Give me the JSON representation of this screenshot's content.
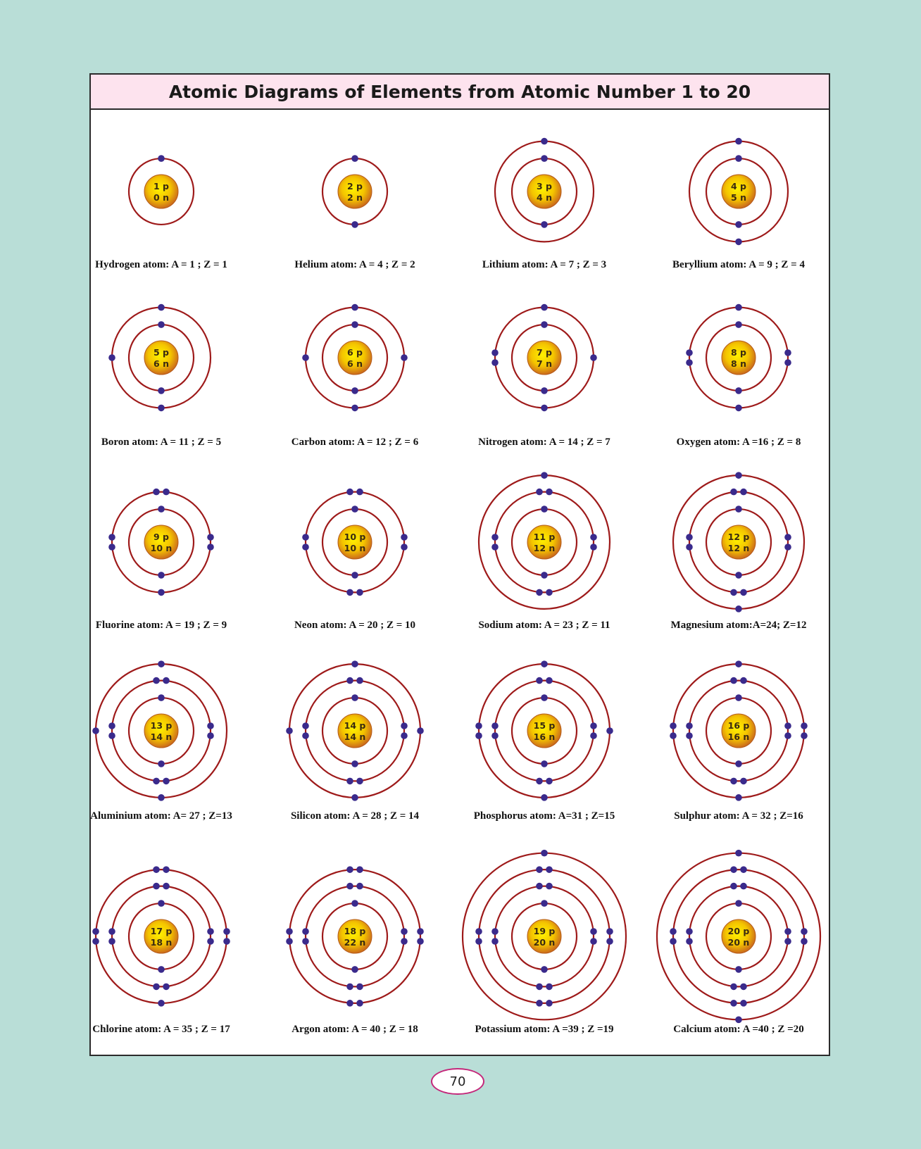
{
  "title": "Atomic Diagrams of Elements from Atomic Number 1 to 20",
  "page_number": "70",
  "colors": {
    "background": "#b9ded7",
    "panel": "#ffffff",
    "title_bar": "#fde3ee",
    "orbit": "#9e1a1a",
    "electron": "#3a2a8c",
    "nucleus_center": "#fff200",
    "nucleus_edge": "#c8641e",
    "page_oval_border": "#c4277a"
  },
  "atoms": [
    {
      "element": "Hydrogen",
      "nucleus": [
        "1 p",
        "0 n"
      ],
      "shells": [
        1
      ],
      "caption": "Hydrogen atom: A = 1 ; Z = 1"
    },
    {
      "element": "Helium",
      "nucleus": [
        "2 p",
        "2 n"
      ],
      "shells": [
        2
      ],
      "caption": "Helium atom: A = 4 ; Z = 2"
    },
    {
      "element": "Lithium",
      "nucleus": [
        "3 p",
        "4 n"
      ],
      "shells": [
        2,
        1
      ],
      "caption": "Lithium atom: A = 7 ; Z = 3"
    },
    {
      "element": "Beryllium",
      "nucleus": [
        "4 p",
        "5 n"
      ],
      "shells": [
        2,
        2
      ],
      "caption": "Beryllium atom: A = 9 ; Z = 4"
    },
    {
      "element": "Boron",
      "nucleus": [
        "5 p",
        "6 n"
      ],
      "shells": [
        2,
        3
      ],
      "caption": "Boron atom: A = 11 ; Z = 5"
    },
    {
      "element": "Carbon",
      "nucleus": [
        "6 p",
        "6 n"
      ],
      "shells": [
        2,
        4
      ],
      "caption": "Carbon atom: A = 12 ; Z = 6"
    },
    {
      "element": "Nitrogen",
      "nucleus": [
        "7 p",
        "7 n"
      ],
      "shells": [
        2,
        5
      ],
      "caption": "Nitrogen atom: A = 14 ; Z = 7"
    },
    {
      "element": "Oxygen",
      "nucleus": [
        "8 p",
        "8 n"
      ],
      "shells": [
        2,
        6
      ],
      "caption": "Oxygen atom: A =16 ; Z = 8"
    },
    {
      "element": "Fluorine",
      "nucleus": [
        "9 p",
        "10 n"
      ],
      "shells": [
        2,
        7
      ],
      "caption": "Fluorine atom: A = 19 ; Z = 9"
    },
    {
      "element": "Neon",
      "nucleus": [
        "10 p",
        "10 n"
      ],
      "shells": [
        2,
        8
      ],
      "caption": "Neon atom: A = 20 ; Z = 10"
    },
    {
      "element": "Sodium",
      "nucleus": [
        "11 p",
        "12 n"
      ],
      "shells": [
        2,
        8,
        1
      ],
      "caption": "Sodium atom: A = 23 ; Z = 11"
    },
    {
      "element": "Magnesium",
      "nucleus": [
        "12 p",
        "12 n"
      ],
      "shells": [
        2,
        8,
        2
      ],
      "caption": "Magnesium atom:A=24; Z=12"
    },
    {
      "element": "Aluminium",
      "nucleus": [
        "13 p",
        "14 n"
      ],
      "shells": [
        2,
        8,
        3
      ],
      "caption": "Aluminium atom: A= 27 ; Z=13"
    },
    {
      "element": "Silicon",
      "nucleus": [
        "14 p",
        "14 n"
      ],
      "shells": [
        2,
        8,
        4
      ],
      "caption": "Silicon atom: A = 28 ; Z = 14"
    },
    {
      "element": "Phosphorus",
      "nucleus": [
        "15 p",
        "16 n"
      ],
      "shells": [
        2,
        8,
        5
      ],
      "caption": "Phosphorus atom: A=31 ; Z=15"
    },
    {
      "element": "Sulphur",
      "nucleus": [
        "16 p",
        "16 n"
      ],
      "shells": [
        2,
        8,
        6
      ],
      "caption": "Sulphur atom: A = 32 ; Z=16"
    },
    {
      "element": "Chlorine",
      "nucleus": [
        "17 p",
        "18 n"
      ],
      "shells": [
        2,
        8,
        7
      ],
      "caption": "Chlorine atom: A = 35 ; Z = 17"
    },
    {
      "element": "Argon",
      "nucleus": [
        "18 p",
        "22 n"
      ],
      "shells": [
        2,
        8,
        8
      ],
      "caption": "Argon atom: A = 40 ; Z = 18"
    },
    {
      "element": "Potassium",
      "nucleus": [
        "19 p",
        "20 n"
      ],
      "shells": [
        2,
        8,
        8,
        1
      ],
      "caption": "Potassium atom: A =39 ; Z =19"
    },
    {
      "element": "Calcium",
      "nucleus": [
        "20 p",
        "20 n"
      ],
      "shells": [
        2,
        8,
        8,
        2
      ],
      "caption": "Calcium atom: A =40 ; Z =20"
    }
  ]
}
